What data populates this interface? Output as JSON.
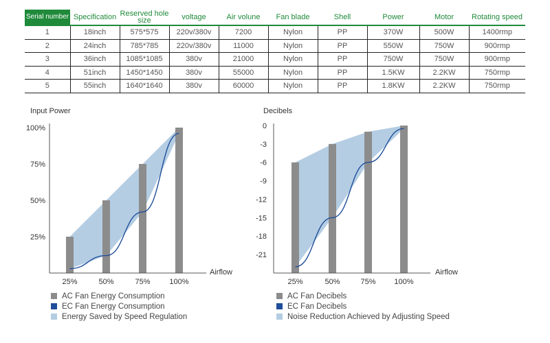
{
  "table": {
    "columns": [
      "Serial number",
      "Specification",
      "Reserved hole size",
      "voltage",
      "Air volune",
      "Fan blade",
      "Shell",
      "Power",
      "Motor",
      "Rotating speed"
    ],
    "rows": [
      [
        "1",
        "18inch",
        "575*575",
        "220v/380v",
        "7200",
        "Nylon",
        "PP",
        "370W",
        "500W",
        "1400rmp"
      ],
      [
        "2",
        "24inch",
        "785*785",
        "220v/380v",
        "11000",
        "Nylon",
        "PP",
        "550W",
        "750W",
        "900rmp"
      ],
      [
        "3",
        "36inch",
        "1085*1085",
        "380v",
        "21000",
        "Nylon",
        "PP",
        "750W",
        "750W",
        "900rmp"
      ],
      [
        "4",
        "51inch",
        "1450*1450",
        "380v",
        "55000",
        "Nylon",
        "PP",
        "1.5KW",
        "2.2KW",
        "750rmp"
      ],
      [
        "5",
        "55inch",
        "1640*1640",
        "380v",
        "60000",
        "Nylon",
        "PP",
        "1.8KW",
        "2.2KW",
        "750rmp"
      ]
    ],
    "accent_color": "#1f8a3a"
  },
  "chart_data": [
    {
      "type": "bar",
      "ylabel": "Input Power",
      "xlabel": "Airflow",
      "categories": [
        "25%",
        "50%",
        "75%",
        "100%"
      ],
      "y_ticks": [
        "25%",
        "50%",
        "75%",
        "100%"
      ],
      "ylim": [
        0,
        100
      ],
      "series": [
        {
          "name": "AC Fan Energy Consumption",
          "type": "bar",
          "color": "#8c8c8c",
          "values": [
            25,
            50,
            75,
            100
          ]
        },
        {
          "name": "EC Fan Energy Consumption",
          "type": "line",
          "color": "#1f4e9a",
          "values": [
            3,
            12,
            42,
            96
          ]
        },
        {
          "name": "Energy Saved by Speed Regulation",
          "type": "area",
          "color": "#b4cde3"
        }
      ],
      "legend_placement": "bottom-left"
    },
    {
      "type": "bar",
      "ylabel": "Decibels",
      "xlabel": "Airflow",
      "categories": [
        "25%",
        "50%",
        "75%",
        "100%"
      ],
      "y_ticks": [
        "0",
        "-3",
        "-6",
        "-9",
        "-12",
        "-15",
        "-18",
        "-21"
      ],
      "ylim": [
        -23,
        0
      ],
      "series": [
        {
          "name": "AC Fan Decibels",
          "type": "bar",
          "color": "#8c8c8c",
          "values": [
            -6,
            -3,
            -1,
            0
          ]
        },
        {
          "name": "EC Fan Decibels",
          "type": "line",
          "color": "#1f4e9a",
          "values": [
            -23,
            -15,
            -6,
            -0.5
          ]
        },
        {
          "name": "Noise Reduction Achieved by Adjusting Speed",
          "type": "area",
          "color": "#b4cde3"
        }
      ],
      "legend_placement": "bottom-left"
    }
  ]
}
